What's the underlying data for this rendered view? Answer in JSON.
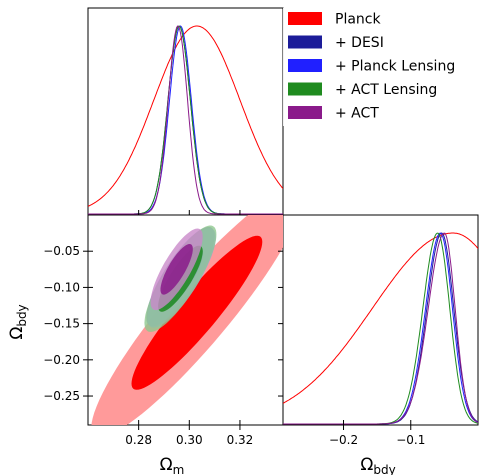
{
  "chart_data": {
    "type": "triangle-corner-plot",
    "parameters": [
      {
        "name": "omega_m",
        "label_main": "Ω",
        "label_sub": "m",
        "range": [
          0.26,
          0.337
        ],
        "ticks": [
          0.28,
          0.3,
          0.32
        ],
        "tick_labels": [
          "0.28",
          "0.30",
          "0.32"
        ]
      },
      {
        "name": "omega_bdy",
        "label_main": "Ω",
        "label_sub": "bdy",
        "range": [
          -0.29,
          0.0
        ],
        "ticks": [
          -0.05,
          -0.1,
          -0.15,
          -0.2,
          -0.25
        ],
        "tick_labels": [
          "−0.05",
          "−0.10",
          "−0.15",
          "−0.20",
          "−0.25"
        ],
        "ticks_marginal": [
          -0.2,
          -0.1
        ],
        "tick_labels_marginal": [
          "−0.2",
          "−0.1"
        ]
      }
    ],
    "series": [
      {
        "name": "Planck",
        "color": "#ff0000",
        "light": "#ff9a9a",
        "omega_m": {
          "mean": 0.303,
          "sigma": 0.017
        },
        "omega_bdy": {
          "mean": -0.037,
          "sigma_left": 0.12,
          "sigma_right": 0.09
        },
        "ellipse_2d": {
          "cx": 0.303,
          "cy": -0.135,
          "sx": 0.017,
          "sy": 0.07,
          "corr": 0.92
        }
      },
      {
        "name": "+ DESI",
        "color": "#1c1c99",
        "light": "#8080c8",
        "omega_m": {
          "mean": 0.296,
          "sigma": 0.0044
        },
        "omega_bdy": {
          "mean": -0.054,
          "sigma_left": 0.022,
          "sigma_right": 0.018
        },
        "ellipse_2d": {
          "cx": 0.2965,
          "cy": -0.085,
          "sx": 0.0055,
          "sy": 0.028,
          "corr": 0.82
        }
      },
      {
        "name": "+ Planck Lensing",
        "color": "#2020ff",
        "light": "#9a9aff",
        "omega_m": {
          "mean": 0.2965,
          "sigma": 0.0043
        },
        "omega_bdy": {
          "mean": -0.056,
          "sigma_left": 0.022,
          "sigma_right": 0.018
        },
        "ellipse_2d": {
          "cx": 0.297,
          "cy": -0.087,
          "sx": 0.0055,
          "sy": 0.028,
          "corr": 0.82
        }
      },
      {
        "name": "+ ACT Lensing",
        "color": "#1f8b1f",
        "light": "#8fc88f",
        "omega_m": {
          "mean": 0.296,
          "sigma": 0.0044
        },
        "omega_bdy": {
          "mean": -0.06,
          "sigma_left": 0.022,
          "sigma_right": 0.018
        },
        "ellipse_2d": {
          "cx": 0.2965,
          "cy": -0.088,
          "sx": 0.0058,
          "sy": 0.03,
          "corr": 0.83
        }
      },
      {
        "name": "+ ACT",
        "color": "#8a1a8a",
        "light": "#c98ac9",
        "omega_m": {
          "mean": 0.2955,
          "sigma": 0.0038
        },
        "omega_bdy": {
          "mean": -0.05,
          "sigma_left": 0.024,
          "sigma_right": 0.016
        },
        "ellipse_2d": {
          "cx": 0.295,
          "cy": -0.075,
          "sx": 0.0042,
          "sy": 0.023,
          "corr": 0.8
        }
      }
    ],
    "legend_position": "top-right"
  }
}
